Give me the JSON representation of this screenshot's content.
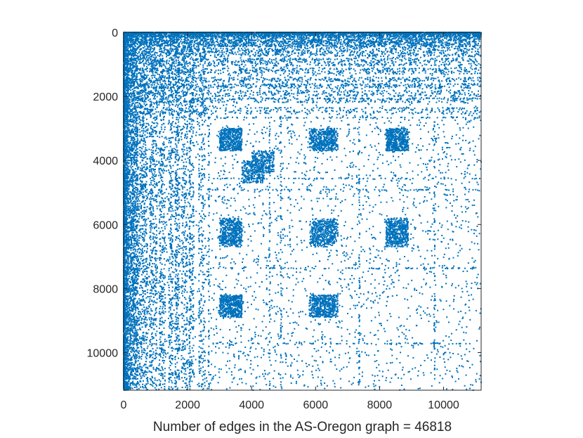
{
  "chart_data": {
    "type": "scatter",
    "subtype": "sparsity-pattern",
    "title": "",
    "xlabel": "Number of edges in the AS-Oregon graph = 46818",
    "ylabel": "",
    "xlim": [
      0,
      11174
    ],
    "ylim": [
      0,
      11174
    ],
    "y_axis_reversed": true,
    "grid": false,
    "legend": "none",
    "marker_color": "#0072BD",
    "x_ticks": [
      0,
      2000,
      4000,
      6000,
      8000,
      10000
    ],
    "y_ticks": [
      0,
      2000,
      4000,
      6000,
      8000,
      10000
    ],
    "x_tick_labels": [
      "0",
      "2000",
      "4000",
      "6000",
      "8000",
      "10000"
    ],
    "y_tick_labels": [
      "0",
      "2000",
      "4000",
      "6000",
      "8000",
      "10000"
    ],
    "nnz": 46818,
    "dense_blocks": [
      {
        "x": [
          3000,
          3700
        ],
        "y": [
          3000,
          3700
        ]
      },
      {
        "x": [
          4000,
          4700
        ],
        "y": [
          3700,
          4400
        ]
      },
      {
        "x": [
          5900,
          6700
        ],
        "y": [
          3000,
          3700
        ]
      },
      {
        "x": [
          8200,
          8900
        ],
        "y": [
          3000,
          3700
        ]
      },
      {
        "x": [
          3000,
          3700
        ],
        "y": [
          5800,
          6600
        ]
      },
      {
        "x": [
          5900,
          6700
        ],
        "y": [
          5800,
          6600
        ]
      },
      {
        "x": [
          8200,
          8900
        ],
        "y": [
          5800,
          6600
        ]
      },
      {
        "x": [
          3000,
          3700
        ],
        "y": [
          8200,
          8900
        ]
      },
      {
        "x": [
          5900,
          6700
        ],
        "y": [
          8200,
          8900
        ]
      }
    ]
  }
}
